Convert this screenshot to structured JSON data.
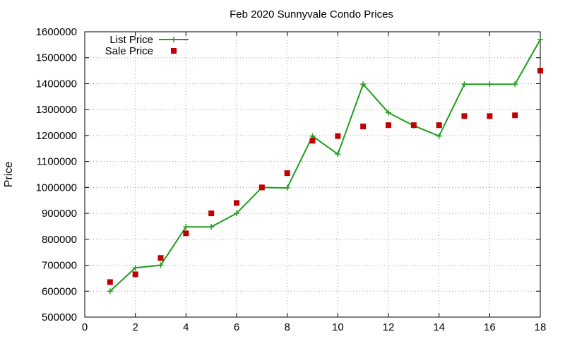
{
  "chart_data": {
    "type": "line",
    "title": "Feb 2020 Sunnyvale Condo Prices",
    "xlabel": "",
    "ylabel": "Price",
    "xlim": [
      0,
      18
    ],
    "ylim": [
      500000,
      1600000
    ],
    "x_ticks": [
      "0",
      "2",
      "4",
      "6",
      "8",
      "10",
      "12",
      "14",
      "16",
      "18"
    ],
    "y_ticks": [
      "500000",
      "600000",
      "700000",
      "800000",
      "900000",
      "1000000",
      "1100000",
      "1200000",
      "1300000",
      "1400000",
      "1500000",
      "1600000"
    ],
    "grid": true,
    "legend_position": "top-left",
    "series": [
      {
        "name": "List Price",
        "style": "line-with-plus-markers",
        "color": "#1e9e1e",
        "x": [
          1,
          2,
          3,
          4,
          5,
          6,
          7,
          8,
          9,
          10,
          11,
          12,
          13,
          14,
          15,
          16,
          17,
          18
        ],
        "y": [
          600000,
          690000,
          700000,
          848000,
          848000,
          900000,
          1000000,
          998000,
          1198000,
          1128000,
          1398000,
          1288000,
          1238000,
          1198000,
          1398000,
          1398000,
          1398000,
          1570000
        ]
      },
      {
        "name": "Sale Price",
        "style": "square-markers",
        "color": "#c00000",
        "x": [
          1,
          2,
          3,
          4,
          5,
          6,
          7,
          8,
          9,
          10,
          11,
          12,
          13,
          14,
          15,
          16,
          17,
          18
        ],
        "y": [
          635000,
          665000,
          728000,
          823000,
          900000,
          940000,
          1000000,
          1055000,
          1180000,
          1198000,
          1235000,
          1240000,
          1240000,
          1240000,
          1275000,
          1275000,
          1278000,
          1450000
        ]
      }
    ]
  }
}
